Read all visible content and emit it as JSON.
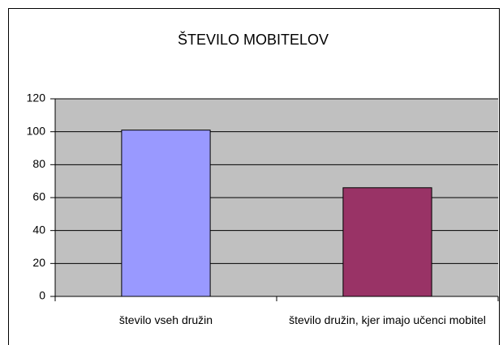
{
  "chart_data": {
    "type": "bar",
    "title": "ŠTEVILO MOBITELOV",
    "categories": [
      "število vseh družin",
      "število družin, kjer imajo učenci mobitel"
    ],
    "values": [
      101,
      66
    ],
    "colors": [
      "#9999ff",
      "#993366"
    ],
    "ylim": [
      0,
      120
    ],
    "yticks": [
      0,
      20,
      40,
      60,
      80,
      100,
      120
    ],
    "grid": true
  }
}
